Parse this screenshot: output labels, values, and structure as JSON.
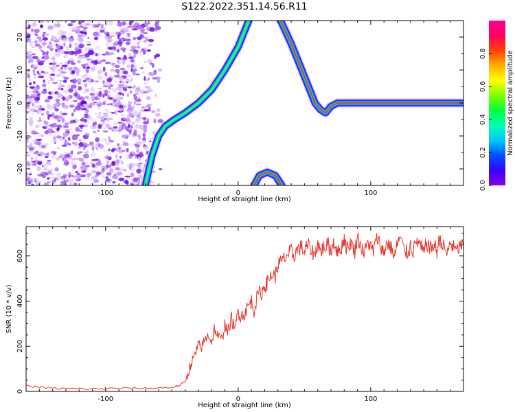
{
  "title": "S122.2022.351.14.56.R11",
  "chart_data": [
    {
      "type": "heatmap",
      "xlabel": "Height of straight line (km)",
      "ylabel": "Frequency (Hz)",
      "xlim": [
        -160,
        170
      ],
      "ylim": [
        -25,
        25
      ],
      "xticks": [
        -100,
        0,
        100
      ],
      "yticks": [
        -20,
        -10,
        0,
        10,
        20
      ],
      "colorbar": {
        "label": "Normalized spectral amplitude",
        "range": [
          0,
          1
        ],
        "ticks": [
          0.0,
          0.2,
          0.4,
          0.6,
          0.8
        ],
        "colors": [
          "#8a00e0",
          "#3a00ff",
          "#0050ff",
          "#00c8ff",
          "#00ffb0",
          "#00ff40",
          "#80ff00",
          "#ffff00",
          "#ffb000",
          "#ff4000",
          "#ff0060",
          "#ff0090"
        ]
      },
      "noise_region": {
        "x": [
          -160,
          -60
        ],
        "y": [
          -25,
          25
        ]
      },
      "ridge": [
        {
          "x": -70,
          "y": -25
        },
        {
          "x": -65,
          "y": -16
        },
        {
          "x": -60,
          "y": -10
        },
        {
          "x": -55,
          "y": -7
        },
        {
          "x": -48,
          "y": -5
        },
        {
          "x": -40,
          "y": -3
        },
        {
          "x": -30,
          "y": 0
        },
        {
          "x": -20,
          "y": 4
        },
        {
          "x": -10,
          "y": 10
        },
        {
          "x": 0,
          "y": 17
        },
        {
          "x": 8,
          "y": 25
        }
      ],
      "ridge_descending": [
        {
          "x": 32,
          "y": 25
        },
        {
          "x": 40,
          "y": 18
        },
        {
          "x": 50,
          "y": 8
        },
        {
          "x": 58,
          "y": 0
        },
        {
          "x": 62,
          "y": -2
        },
        {
          "x": 66,
          "y": -3
        },
        {
          "x": 70,
          "y": -1
        },
        {
          "x": 75,
          "y": 0
        },
        {
          "x": 170,
          "y": 0
        }
      ],
      "arch": [
        {
          "x": 12,
          "y": -25
        },
        {
          "x": 16,
          "y": -22
        },
        {
          "x": 22,
          "y": -21
        },
        {
          "x": 28,
          "y": -22
        },
        {
          "x": 33,
          "y": -25
        }
      ]
    },
    {
      "type": "line",
      "xlabel": "Height of straight line (km)",
      "ylabel": "SNR (10 * v/v)",
      "xlim": [
        -160,
        170
      ],
      "ylim": [
        0,
        730
      ],
      "xticks": [
        -100,
        0,
        100
      ],
      "yticks": [
        0,
        200,
        400,
        600
      ],
      "series": [
        {
          "color": "#e8332a",
          "x": [
            -160,
            -150,
            -140,
            -130,
            -120,
            -110,
            -100,
            -90,
            -80,
            -70,
            -60,
            -50,
            -45,
            -40,
            -38,
            -35,
            -32,
            -30,
            -28,
            -25,
            -22,
            -20,
            -18,
            -15,
            -12,
            -10,
            -8,
            -5,
            -2,
            0,
            2,
            5,
            8,
            10,
            12,
            15,
            18,
            20,
            22,
            25,
            28,
            30,
            32,
            35,
            38,
            40,
            42,
            45,
            48,
            50,
            52,
            55,
            58,
            60,
            62,
            65,
            68,
            70,
            72,
            75,
            78,
            80,
            82,
            85,
            88,
            90,
            92,
            95,
            98,
            100,
            102,
            105,
            108,
            110,
            112,
            115,
            118,
            120,
            122,
            125,
            128,
            130,
            132,
            135,
            138,
            140,
            142,
            145,
            148,
            150,
            152,
            155,
            158,
            160,
            162,
            165,
            168,
            170
          ],
          "y": [
            25,
            18,
            14,
            12,
            12,
            11,
            12,
            13,
            14,
            14,
            15,
            18,
            25,
            40,
            80,
            130,
            170,
            210,
            190,
            230,
            250,
            215,
            280,
            240,
            230,
            300,
            260,
            320,
            280,
            360,
            330,
            350,
            380,
            400,
            360,
            430,
            440,
            470,
            480,
            520,
            510,
            560,
            570,
            590,
            610,
            620,
            600,
            630,
            640,
            610,
            650,
            630,
            600,
            660,
            620,
            640,
            650,
            620,
            670,
            610,
            640,
            680,
            630,
            660,
            620,
            690,
            650,
            610,
            660,
            640,
            620,
            680,
            640,
            610,
            660,
            640,
            600,
            650,
            680,
            630,
            610,
            650,
            620,
            670,
            640,
            610,
            660,
            630,
            650,
            620,
            680,
            640,
            610,
            660,
            640,
            620,
            650,
            640
          ]
        }
      ]
    }
  ]
}
